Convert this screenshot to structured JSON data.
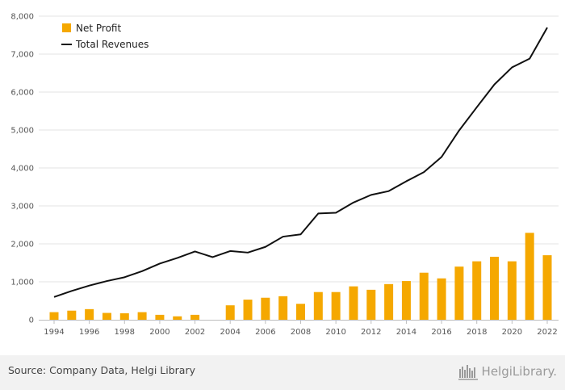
{
  "chart_data": {
    "type": "bar",
    "title": "",
    "xlabel": "",
    "ylabel": "",
    "x": [
      1994,
      1995,
      1996,
      1997,
      1998,
      1999,
      2000,
      2001,
      2002,
      2003,
      2004,
      2005,
      2006,
      2007,
      2008,
      2009,
      2010,
      2011,
      2012,
      2013,
      2014,
      2015,
      2016,
      2017,
      2018,
      2019,
      2020,
      2021,
      2022
    ],
    "x_tick_labels": [
      "1994",
      "1996",
      "1998",
      "2000",
      "2002",
      "2004",
      "2006",
      "2008",
      "2010",
      "2012",
      "2014",
      "2016",
      "2018",
      "2020",
      "2022"
    ],
    "ylim": [
      0,
      8000
    ],
    "y_tick_values": [
      0,
      1000,
      2000,
      3000,
      4000,
      5000,
      6000,
      7000,
      8000
    ],
    "y_tick_labels": [
      "0",
      "1,000",
      "2,000",
      "3,000",
      "4,000",
      "5,000",
      "6,000",
      "7,000",
      "8,000"
    ],
    "grid": true,
    "legend_position": "top-left",
    "series": [
      {
        "name": "Net Profit",
        "type": "bar",
        "color": "#f5a800",
        "values": [
          200,
          240,
          280,
          180,
          170,
          200,
          130,
          90,
          130,
          null,
          380,
          530,
          580,
          620,
          420,
          730,
          730,
          880,
          790,
          940,
          1020,
          1240,
          1090,
          1400,
          1540,
          1660,
          1540,
          2290,
          1700
        ]
      },
      {
        "name": "Total Revenues",
        "type": "line",
        "color": "#111111",
        "values": [
          600,
          760,
          900,
          1020,
          1120,
          1280,
          1480,
          1630,
          1800,
          1650,
          1810,
          1770,
          1920,
          2190,
          2250,
          2800,
          2820,
          3090,
          3290,
          3390,
          3650,
          3890,
          4290,
          4990,
          5600,
          6200,
          6650,
          6880,
          7700
        ]
      }
    ]
  },
  "footer": {
    "source": "Source: Company Data, Helgi Library",
    "brand": "HelgiLibrary.",
    "brand_icon": "helgi-library-bookshelf-icon"
  }
}
